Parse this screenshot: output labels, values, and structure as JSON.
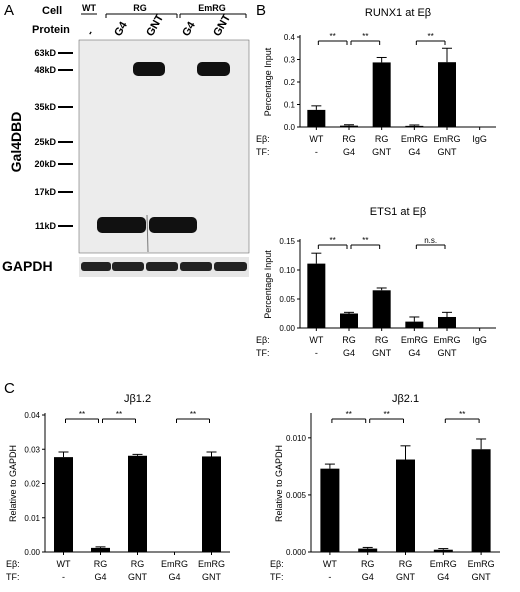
{
  "panel_letters": {
    "a": "A",
    "b": "B",
    "c": "C"
  },
  "blot": {
    "cell_label": "Cell",
    "protein_label": "Protein",
    "groups": [
      {
        "name": "WT",
        "lanes": [
          "-"
        ]
      },
      {
        "name": "RG",
        "lanes": [
          "G4",
          "GNT"
        ]
      },
      {
        "name": "EmRG",
        "lanes": [
          "G4",
          "GNT"
        ]
      }
    ],
    "markers": [
      "63kD",
      "48kD",
      "35kD",
      "25kD",
      "20kD",
      "17kD",
      "11kD"
    ],
    "ylabel": "Gal4DBD",
    "loading_label": "GAPDH"
  },
  "row_labels": {
    "eb": "Eβ:",
    "tf": "TF:"
  },
  "chart_data": [
    {
      "id": "runx1",
      "type": "bar",
      "title": "RUNX1 at Eβ",
      "ylabel": "Percentage Input",
      "ylim": [
        0,
        0.4
      ],
      "yticks": [
        "0.0",
        "0.1",
        "0.2",
        "0.3",
        "0.4"
      ],
      "categories": [
        "WT",
        "RG",
        "RG",
        "EmRG",
        "EmRG",
        "IgG"
      ],
      "tf": [
        "-",
        "G4",
        "GNT",
        "G4",
        "GNT",
        ""
      ],
      "values": [
        0.076,
        0.006,
        0.287,
        0.005,
        0.288,
        0
      ],
      "errors": [
        0.018,
        0.004,
        0.022,
        0.004,
        0.062,
        0
      ],
      "brackets": [
        {
          "from": 0,
          "to": 1,
          "label": "**"
        },
        {
          "from": 1,
          "to": 2,
          "label": "**"
        },
        {
          "from": 3,
          "to": 4,
          "label": "**"
        }
      ]
    },
    {
      "id": "ets1",
      "type": "bar",
      "title": "ETS1 at Eβ",
      "ylabel": "Percentage Input",
      "ylim": [
        0,
        0.15
      ],
      "yticks": [
        "0.00",
        "0.05",
        "0.10",
        "0.15"
      ],
      "categories": [
        "WT",
        "RG",
        "RG",
        "EmRG",
        "EmRG",
        "IgG"
      ],
      "tf": [
        "-",
        "G4",
        "GNT",
        "G4",
        "GNT",
        ""
      ],
      "values": [
        0.111,
        0.025,
        0.065,
        0.011,
        0.019,
        0.0005
      ],
      "errors": [
        0.018,
        0.002,
        0.004,
        0.008,
        0.008,
        0
      ],
      "brackets": [
        {
          "from": 0,
          "to": 1,
          "label": "**"
        },
        {
          "from": 1,
          "to": 2,
          "label": "**"
        },
        {
          "from": 3,
          "to": 4,
          "label": "n.s."
        }
      ]
    },
    {
      "id": "jb12",
      "type": "bar",
      "title": "Jβ1.2",
      "ylabel": "Relative to GAPDH",
      "ylim": [
        0,
        0.04
      ],
      "yticks": [
        "0.00",
        "0.01",
        "0.02",
        "0.03",
        "0.04"
      ],
      "categories": [
        "WT",
        "RG",
        "RG",
        "EmRG",
        "EmRG"
      ],
      "tf": [
        "-",
        "G4",
        "GNT",
        "G4",
        "GNT"
      ],
      "values": [
        0.0277,
        0.0012,
        0.0281,
        0,
        0.0279
      ],
      "errors": [
        0.0015,
        0.0003,
        0.0004,
        0,
        0.0013
      ],
      "brackets": [
        {
          "from": 0,
          "to": 1,
          "label": "**"
        },
        {
          "from": 1,
          "to": 2,
          "label": "**"
        },
        {
          "from": 3,
          "to": 4,
          "label": "**"
        }
      ]
    },
    {
      "id": "jb21",
      "type": "bar",
      "title": "Jβ2.1",
      "ylabel": "Relative to GAPDH",
      "ylim": [
        0,
        0.012
      ],
      "yticks": [
        "0.000",
        "0.005",
        "0.010"
      ],
      "categories": [
        "WT",
        "RG",
        "RG",
        "EmRG",
        "EmRG"
      ],
      "tf": [
        "-",
        "G4",
        "GNT",
        "G4",
        "GNT"
      ],
      "values": [
        0.0073,
        0.0003,
        0.0081,
        0.0002,
        0.009
      ],
      "errors": [
        0.0004,
        0.0001,
        0.0012,
        0.0001,
        0.0009
      ],
      "brackets": [
        {
          "from": 0,
          "to": 1,
          "label": "**"
        },
        {
          "from": 1,
          "to": 2,
          "label": "**"
        },
        {
          "from": 3,
          "to": 4,
          "label": "**"
        }
      ]
    }
  ]
}
